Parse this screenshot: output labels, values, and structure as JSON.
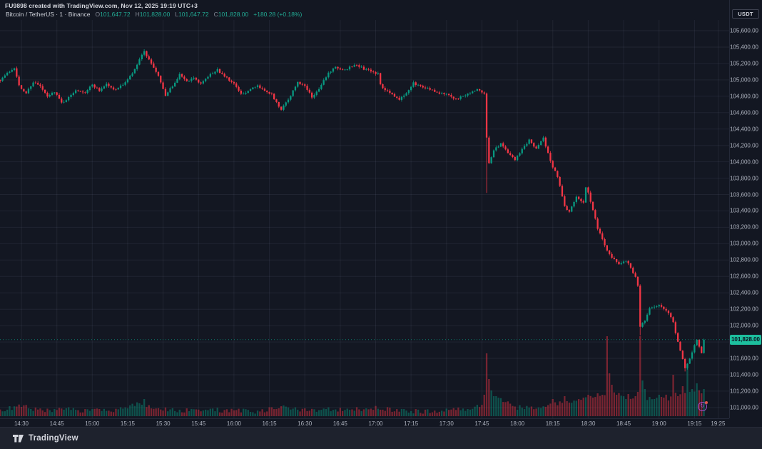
{
  "attribution": "FU9898 created with TradingView.com, Nov 12, 2025 19:19 UTC+3",
  "symbol_bar": {
    "title": "Bitcoin / TetherUS · 1 · Binance",
    "ohlc": [
      {
        "label": "O",
        "value": "101,647.72"
      },
      {
        "label": "H",
        "value": "101,828.00"
      },
      {
        "label": "L",
        "value": "101,647.72"
      },
      {
        "label": "C",
        "value": "101,828.00"
      }
    ],
    "change": "+180.28 (+0.18%)"
  },
  "currency_button": "USDT",
  "price_flag_label": "101,828.00",
  "footer": {
    "brand": "TradingView"
  },
  "colors": {
    "up": "#089981",
    "down": "#f23645",
    "accent_label": "#1dbf9e",
    "background": "#131722",
    "grid": "rgba(151,161,185,0.10)",
    "axis_text": "#aeb3bf"
  },
  "chart_data": {
    "type": "candlestick",
    "symbol": "Bitcoin / TetherUS",
    "interval": "1",
    "exchange": "Binance",
    "quote_currency": "USDT",
    "open": 101647.72,
    "high": 101828.0,
    "low": 101647.72,
    "close": 101828.0,
    "change_text": "+180.28 (+0.18%)",
    "current_price": 101828,
    "ylim": [
      100900,
      105700
    ],
    "price_ticks": [
      105600,
      105400,
      105200,
      105000,
      104800,
      104600,
      104400,
      104200,
      104000,
      103800,
      103600,
      103400,
      103200,
      103000,
      102800,
      102600,
      102400,
      102200,
      102000,
      101800,
      101600,
      101400,
      101200,
      101000
    ],
    "time_ticks": [
      "14:30",
      "14:45",
      "15:00",
      "15:15",
      "15:30",
      "15:45",
      "16:00",
      "16:15",
      "16:30",
      "16:45",
      "17:00",
      "17:15",
      "17:30",
      "17:45",
      "18:00",
      "18:15",
      "18:30",
      "18:45",
      "19:00",
      "19:15",
      "19:25"
    ],
    "session_start": "14:30",
    "price_anchors": [
      [
        -9,
        105000
      ],
      [
        -6,
        105080
      ],
      [
        -3,
        105150
      ],
      [
        -2,
        105050
      ],
      [
        -1,
        104930
      ],
      [
        0,
        104880
      ],
      [
        2,
        104840
      ],
      [
        5,
        104975
      ],
      [
        8,
        104920
      ],
      [
        11,
        104790
      ],
      [
        14,
        104860
      ],
      [
        17,
        104720
      ],
      [
        20,
        104780
      ],
      [
        23,
        104880
      ],
      [
        27,
        104850
      ],
      [
        30,
        104940
      ],
      [
        33,
        104870
      ],
      [
        36,
        104950
      ],
      [
        39,
        104880
      ],
      [
        42,
        104920
      ],
      [
        45,
        105000
      ],
      [
        48,
        105120
      ],
      [
        50,
        105250
      ],
      [
        52,
        105340
      ],
      [
        54,
        105260
      ],
      [
        56,
        105150
      ],
      [
        58,
        105050
      ],
      [
        61,
        104800
      ],
      [
        64,
        104930
      ],
      [
        67,
        105060
      ],
      [
        70,
        104980
      ],
      [
        73,
        105020
      ],
      [
        76,
        104950
      ],
      [
        80,
        105060
      ],
      [
        83,
        105120
      ],
      [
        86,
        105040
      ],
      [
        90,
        104950
      ],
      [
        93,
        104820
      ],
      [
        96,
        104870
      ],
      [
        100,
        104920
      ],
      [
        103,
        104870
      ],
      [
        106,
        104820
      ],
      [
        110,
        104640
      ],
      [
        113,
        104750
      ],
      [
        117,
        104980
      ],
      [
        120,
        104920
      ],
      [
        123,
        104790
      ],
      [
        126,
        104880
      ],
      [
        130,
        105090
      ],
      [
        133,
        105150
      ],
      [
        136,
        105110
      ],
      [
        139,
        105150
      ],
      [
        142,
        105190
      ],
      [
        145,
        105130
      ],
      [
        148,
        105110
      ],
      [
        151,
        105070
      ],
      [
        152,
        104950
      ],
      [
        154,
        104870
      ],
      [
        157,
        104830
      ],
      [
        160,
        104760
      ],
      [
        163,
        104850
      ],
      [
        166,
        104960
      ],
      [
        169,
        104930
      ],
      [
        172,
        104890
      ],
      [
        176,
        104850
      ],
      [
        180,
        104820
      ],
      [
        184,
        104760
      ],
      [
        187,
        104800
      ],
      [
        190,
        104840
      ],
      [
        193,
        104880
      ],
      [
        196,
        104820
      ],
      [
        197,
        104300
      ],
      [
        198,
        103980
      ],
      [
        200,
        104150
      ],
      [
        203,
        104220
      ],
      [
        206,
        104100
      ],
      [
        209,
        104020
      ],
      [
        212,
        104150
      ],
      [
        215,
        104260
      ],
      [
        218,
        104160
      ],
      [
        221,
        104290
      ],
      [
        224,
        104000
      ],
      [
        227,
        103820
      ],
      [
        230,
        103450
      ],
      [
        232,
        103380
      ],
      [
        235,
        103580
      ],
      [
        238,
        103500
      ],
      [
        239,
        103680
      ],
      [
        240,
        103620
      ],
      [
        242,
        103420
      ],
      [
        244,
        103180
      ],
      [
        246,
        103060
      ],
      [
        248,
        102920
      ],
      [
        250,
        102830
      ],
      [
        253,
        102760
      ],
      [
        256,
        102800
      ],
      [
        258,
        102700
      ],
      [
        260,
        102600
      ],
      [
        261,
        102480
      ],
      [
        262,
        101990
      ],
      [
        264,
        102060
      ],
      [
        266,
        102200
      ],
      [
        268,
        102230
      ],
      [
        270,
        102255
      ],
      [
        272,
        102200
      ],
      [
        274,
        102150
      ],
      [
        276,
        102050
      ],
      [
        277,
        101905
      ],
      [
        279,
        101700
      ],
      [
        281,
        101480
      ],
      [
        283,
        101600
      ],
      [
        285,
        101750
      ],
      [
        286,
        101820
      ],
      [
        288,
        101660
      ],
      [
        289,
        101828
      ]
    ],
    "wick_lows": [
      [
        197,
        103620
      ],
      [
        262,
        101880
      ],
      [
        281,
        101440
      ]
    ],
    "volume_anchors": [
      [
        -9,
        8
      ],
      [
        0,
        14
      ],
      [
        10,
        7
      ],
      [
        20,
        9
      ],
      [
        30,
        8
      ],
      [
        40,
        7
      ],
      [
        50,
        18
      ],
      [
        60,
        10
      ],
      [
        70,
        8
      ],
      [
        80,
        9
      ],
      [
        90,
        8
      ],
      [
        100,
        7
      ],
      [
        110,
        12
      ],
      [
        120,
        8
      ],
      [
        130,
        10
      ],
      [
        140,
        9
      ],
      [
        150,
        12
      ],
      [
        160,
        8
      ],
      [
        170,
        7
      ],
      [
        180,
        8
      ],
      [
        190,
        10
      ],
      [
        196,
        18
      ],
      [
        200,
        26
      ],
      [
        210,
        12
      ],
      [
        220,
        13
      ],
      [
        230,
        20
      ],
      [
        240,
        24
      ],
      [
        250,
        34
      ],
      [
        260,
        26
      ],
      [
        270,
        26
      ],
      [
        280,
        34
      ],
      [
        289,
        36
      ]
    ],
    "volume_spikes": {
      "52": 24,
      "196": 30,
      "197": 88,
      "198": 52,
      "199": 36,
      "200": 28,
      "225": 24,
      "230": 28,
      "240": 30,
      "242": 26,
      "244": 32,
      "246": 30,
      "248": 112,
      "249": 60,
      "250": 44,
      "252": 30,
      "256": 24,
      "260": 28,
      "261": 34,
      "262": 112,
      "263": 50,
      "264": 38,
      "268": 24,
      "270": 30,
      "272": 26,
      "274": 22,
      "276": 58,
      "278": 28,
      "280": 42,
      "282": 68,
      "284": 38,
      "286": 46,
      "288": 32,
      "289": 38
    },
    "legend_position": "top-left",
    "grid": true
  }
}
